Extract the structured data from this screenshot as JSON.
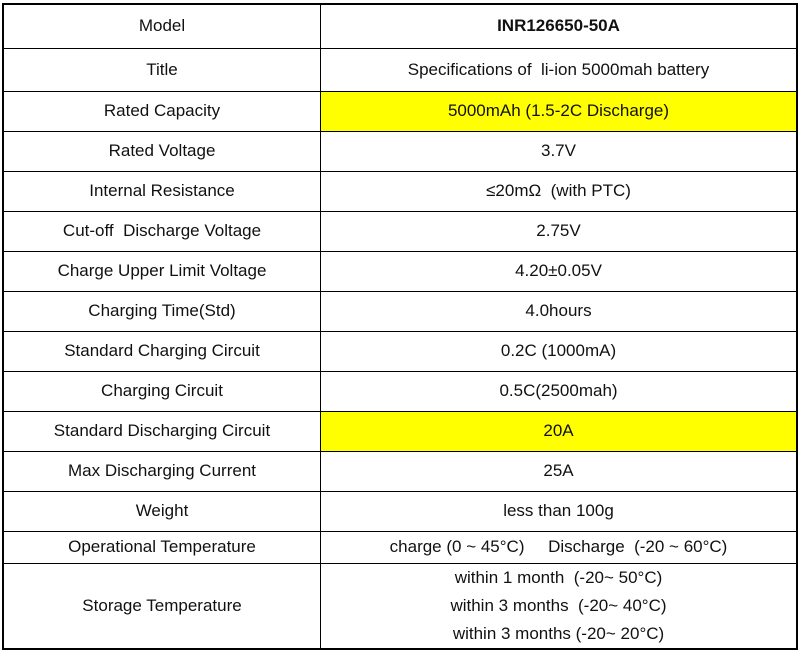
{
  "table": {
    "rows": [
      {
        "label": "Model",
        "value": "INR126650-50A"
      },
      {
        "label": "Title",
        "value": "Specifications of  li-ion 5000mah battery"
      },
      {
        "label": "Rated Capacity",
        "value": "5000mAh (1.5-2C Discharge)",
        "highlight": "#ffff00"
      },
      {
        "label": "Rated Voltage",
        "value": "3.7V"
      },
      {
        "label": "Internal Resistance",
        "value": "≤20mΩ  (with PTC)"
      },
      {
        "label": "Cut-off  Discharge Voltage",
        "value": "2.75V"
      },
      {
        "label": "Charge Upper Limit Voltage",
        "value": "4.20±0.05V"
      },
      {
        "label": "Charging Time(Std)",
        "value": "4.0hours"
      },
      {
        "label": "Standard Charging Circuit",
        "value": "0.2C (1000mA)"
      },
      {
        "label": "Charging Circuit",
        "value": "0.5C(2500mah)"
      },
      {
        "label": "Standard Discharging Circuit",
        "value": "20A",
        "highlight": "#ffff00"
      },
      {
        "label": "Max Discharging Current",
        "value": "25A"
      },
      {
        "label": "Weight",
        "value": "less than 100g"
      },
      {
        "label": "Operational Temperature",
        "value": "charge (0 ~ 45°C)     Discharge  (-20 ~ 60°C)"
      },
      {
        "label": "Storage Temperature",
        "value": [
          "within 1 month  (-20~ 50°C)",
          "within 3 months  (-20~ 40°C)",
          "within 3 months (-20~ 20°C)"
        ]
      }
    ]
  }
}
